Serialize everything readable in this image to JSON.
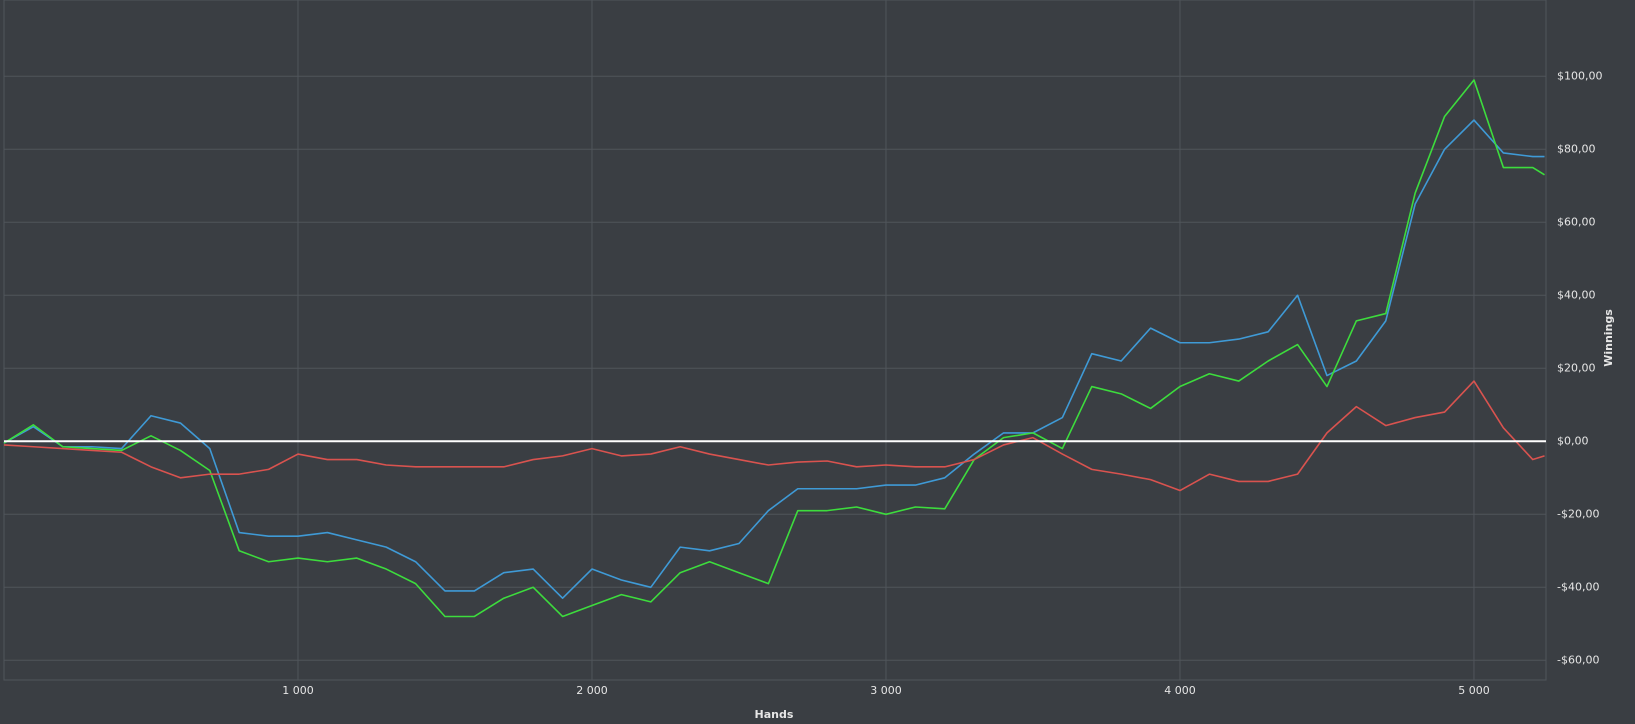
{
  "chart_data": {
    "type": "line",
    "x_label": "Hands",
    "y_label": "Winnings",
    "xlim": [
      0,
      5245
    ],
    "ylim": [
      -65.4,
      120.9
    ],
    "xticks": [
      {
        "value": 1000,
        "label": "1 000"
      },
      {
        "value": 2000,
        "label": "2 000"
      },
      {
        "value": 3000,
        "label": "3 000"
      },
      {
        "value": 4000,
        "label": "4 000"
      },
      {
        "value": 5000,
        "label": "5 000"
      }
    ],
    "yticks": [
      {
        "value": -60,
        "label": "-$60,00"
      },
      {
        "value": -40,
        "label": "-$40,00"
      },
      {
        "value": -20,
        "label": "-$20,00"
      },
      {
        "value": 0,
        "label": "$0,00"
      },
      {
        "value": 20,
        "label": "$20,00"
      },
      {
        "value": 40,
        "label": "$40,00"
      },
      {
        "value": 60,
        "label": "$60,00"
      },
      {
        "value": 80,
        "label": "$80,00"
      },
      {
        "value": 100,
        "label": "$100,00"
      }
    ],
    "grid": true,
    "zero_line": true,
    "y_axis_side": "right",
    "x": [
      0,
      100,
      200,
      300,
      400,
      500,
      600,
      700,
      800,
      900,
      1000,
      1100,
      1200,
      1300,
      1400,
      1500,
      1600,
      1700,
      1800,
      1900,
      2000,
      2100,
      2200,
      2300,
      2400,
      2500,
      2600,
      2700,
      2800,
      2900,
      3000,
      3100,
      3200,
      3300,
      3400,
      3500,
      3600,
      3700,
      3800,
      3900,
      4000,
      4100,
      4200,
      4300,
      4400,
      4500,
      4600,
      4700,
      4800,
      4900,
      5000,
      5100,
      5200,
      5240
    ],
    "series": [
      {
        "color": "#3f9ad6",
        "values": [
          -0.5,
          4,
          -1.5,
          -1.5,
          -2,
          7,
          5,
          -2,
          -25,
          -26,
          -26,
          -25,
          -27,
          -29,
          -33,
          -41,
          -41,
          -36,
          -35,
          -43,
          -35,
          -38,
          -40,
          -29,
          -30,
          -28,
          -19,
          -13,
          -13,
          -13,
          -12,
          -12,
          -10,
          -3.5,
          2.3,
          2.3,
          6.5,
          24,
          22,
          31,
          27,
          27,
          28,
          30,
          40,
          18,
          22,
          33,
          65,
          80,
          88,
          79,
          78,
          78
        ]
      },
      {
        "color": "#3ddc3d",
        "values": [
          -0.5,
          4.5,
          -1.5,
          -2,
          -2.5,
          1.5,
          -2.5,
          -8,
          -30,
          -33,
          -32,
          -33,
          -32,
          -35,
          -39,
          -48,
          -48,
          -43,
          -40,
          -48,
          -45,
          -42,
          -44,
          -36,
          -33,
          -36,
          -39,
          -19,
          -19,
          -18,
          -20,
          -18,
          -18.5,
          -5,
          1,
          2.3,
          -2,
          15,
          13,
          9,
          15,
          18.5,
          16.5,
          22,
          26.5,
          15,
          33,
          35,
          68,
          89,
          99,
          75,
          75,
          73
        ]
      },
      {
        "color": "#d9534f",
        "values": [
          -1,
          -1.5,
          -2,
          -2.5,
          -3,
          -7,
          -10,
          -9,
          -9,
          -7.7,
          -3.5,
          -5,
          -5,
          -6.5,
          -7,
          -7,
          -7,
          -7,
          -5,
          -4,
          -2,
          -4,
          -3.5,
          -1.5,
          -3.5,
          -5,
          -6.5,
          -5.7,
          -5.4,
          -7,
          -6.5,
          -7,
          -7,
          -5,
          -1,
          1,
          -3.5,
          -7.7,
          -9,
          -10.5,
          -13.5,
          -9,
          -11,
          -11,
          -9,
          2.3,
          9.5,
          4.3,
          6.5,
          8,
          16.5,
          3.7,
          -5,
          -4
        ]
      }
    ]
  }
}
